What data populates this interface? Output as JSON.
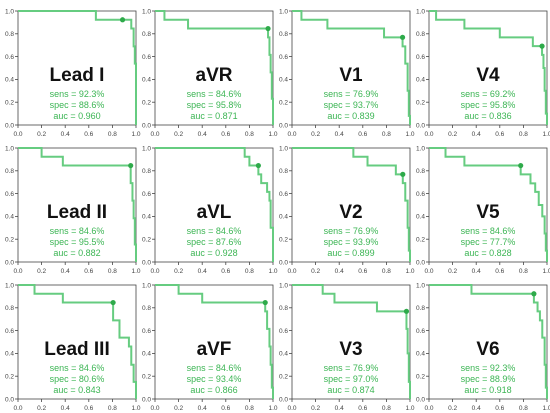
{
  "colors": {
    "curve": "#66cc80",
    "dot": "#2eaa4a",
    "stats": "#3cb554",
    "label": "#111111",
    "axis": "#444444",
    "grid_bg": "#ffffff"
  },
  "chart_data": [
    {
      "type": "line",
      "lead": "Lead I",
      "stats": [
        "sens = 92.3%",
        "spec = 88.6%",
        "auc = 0.960"
      ],
      "operating_point": [
        0.886,
        0.923
      ],
      "curve": [
        [
          0,
          1
        ],
        [
          0.66,
          1
        ],
        [
          0.66,
          0.923
        ],
        [
          0.96,
          0.923
        ],
        [
          0.96,
          0.846
        ],
        [
          0.98,
          0.846
        ],
        [
          0.98,
          0.69
        ],
        [
          0.99,
          0.69
        ],
        [
          0.99,
          0.538
        ],
        [
          1,
          0.538
        ],
        [
          1,
          0
        ]
      ],
      "xlim": [
        0,
        1
      ],
      "ylim": [
        0,
        1
      ],
      "xticks": [
        "0.0",
        "0.2",
        "0.4",
        "0.6",
        "0.8",
        "1.0"
      ],
      "yticks": [
        "0.0",
        "0.2",
        "0.4",
        "0.6",
        "0.8",
        "1.0"
      ]
    },
    {
      "type": "line",
      "lead": "aVR",
      "stats": [
        "sens = 84.6%",
        "spec = 95.8%",
        "auc = 0.871"
      ],
      "operating_point": [
        0.958,
        0.846
      ],
      "curve": [
        [
          0,
          1
        ],
        [
          0.08,
          1
        ],
        [
          0.08,
          0.923
        ],
        [
          0.28,
          0.923
        ],
        [
          0.28,
          0.846
        ],
        [
          0.958,
          0.846
        ],
        [
          0.958,
          0.769
        ],
        [
          0.97,
          0.769
        ],
        [
          0.97,
          0.615
        ],
        [
          0.98,
          0.615
        ],
        [
          0.98,
          0.462
        ],
        [
          0.99,
          0.462
        ],
        [
          0.99,
          0.23
        ],
        [
          1,
          0.23
        ],
        [
          1,
          0
        ]
      ],
      "xlim": [
        0,
        1
      ],
      "ylim": [
        0,
        1
      ],
      "xticks": [
        "0.0",
        "0.2",
        "0.4",
        "0.6",
        "0.8",
        "1.0"
      ],
      "yticks": [
        "0.0",
        "0.2",
        "0.4",
        "0.6",
        "0.8",
        "1.0"
      ]
    },
    {
      "type": "line",
      "lead": "V1",
      "stats": [
        "sens = 76.9%",
        "spec = 93.7%",
        "auc = 0.839"
      ],
      "operating_point": [
        0.937,
        0.769
      ],
      "curve": [
        [
          0,
          1
        ],
        [
          0.08,
          1
        ],
        [
          0.08,
          0.923
        ],
        [
          0.3,
          0.923
        ],
        [
          0.3,
          0.846
        ],
        [
          0.78,
          0.846
        ],
        [
          0.78,
          0.769
        ],
        [
          0.937,
          0.769
        ],
        [
          0.937,
          0.69
        ],
        [
          0.96,
          0.69
        ],
        [
          0.96,
          0.538
        ],
        [
          0.98,
          0.538
        ],
        [
          0.98,
          0.3
        ],
        [
          0.99,
          0.3
        ],
        [
          0.99,
          0.08
        ],
        [
          1,
          0.08
        ],
        [
          1,
          0
        ]
      ],
      "xlim": [
        0,
        1
      ],
      "ylim": [
        0,
        1
      ],
      "xticks": [
        "0.0",
        "0.2",
        "0.4",
        "0.6",
        "0.8",
        "1.0"
      ],
      "yticks": [
        "0.0",
        "0.2",
        "0.4",
        "0.6",
        "0.8",
        "1.0"
      ]
    },
    {
      "type": "line",
      "lead": "V4",
      "stats": [
        "sens = 69.2%",
        "spec = 95.8%",
        "auc = 0.836"
      ],
      "operating_point": [
        0.958,
        0.692
      ],
      "curve": [
        [
          0,
          1
        ],
        [
          0.06,
          1
        ],
        [
          0.06,
          0.923
        ],
        [
          0.3,
          0.923
        ],
        [
          0.3,
          0.846
        ],
        [
          0.6,
          0.846
        ],
        [
          0.6,
          0.769
        ],
        [
          0.88,
          0.769
        ],
        [
          0.88,
          0.692
        ],
        [
          0.958,
          0.692
        ],
        [
          0.958,
          0.615
        ],
        [
          0.97,
          0.615
        ],
        [
          0.97,
          0.5
        ],
        [
          0.98,
          0.5
        ],
        [
          0.98,
          0.3
        ],
        [
          0.99,
          0.3
        ],
        [
          0.99,
          0.1
        ],
        [
          1,
          0.1
        ],
        [
          1,
          0
        ]
      ],
      "xlim": [
        0,
        1
      ],
      "ylim": [
        0,
        1
      ],
      "xticks": [
        "0.0",
        "0.2",
        "0.4",
        "0.6",
        "0.8",
        "1.0"
      ],
      "yticks": [
        "0.0",
        "0.2",
        "0.4",
        "0.6",
        "0.8",
        "1.0"
      ]
    },
    {
      "type": "line",
      "lead": "Lead II",
      "stats": [
        "sens = 84.6%",
        "spec = 95.5%",
        "auc = 0.882"
      ],
      "operating_point": [
        0.955,
        0.846
      ],
      "curve": [
        [
          0,
          1
        ],
        [
          0.2,
          1
        ],
        [
          0.2,
          0.923
        ],
        [
          0.38,
          0.923
        ],
        [
          0.38,
          0.846
        ],
        [
          0.955,
          0.846
        ],
        [
          0.955,
          0.692
        ],
        [
          0.97,
          0.692
        ],
        [
          0.97,
          0.538
        ],
        [
          0.98,
          0.538
        ],
        [
          0.98,
          0.384
        ],
        [
          0.99,
          0.384
        ],
        [
          0.99,
          0.154
        ],
        [
          1,
          0.154
        ],
        [
          1,
          0
        ]
      ],
      "xlim": [
        0,
        1
      ],
      "ylim": [
        0,
        1
      ],
      "xticks": [
        "0.0",
        "0.2",
        "0.4",
        "0.6",
        "0.8",
        "1.0"
      ],
      "yticks": [
        "0.0",
        "0.2",
        "0.4",
        "0.6",
        "0.8",
        "1.0"
      ]
    },
    {
      "type": "line",
      "lead": "aVL",
      "stats": [
        "sens = 84.6%",
        "spec = 87.6%",
        "auc = 0.928"
      ],
      "operating_point": [
        0.876,
        0.846
      ],
      "curve": [
        [
          0,
          1
        ],
        [
          0.76,
          1
        ],
        [
          0.76,
          0.923
        ],
        [
          0.8,
          0.923
        ],
        [
          0.8,
          0.846
        ],
        [
          0.876,
          0.846
        ],
        [
          0.876,
          0.769
        ],
        [
          0.9,
          0.769
        ],
        [
          0.9,
          0.692
        ],
        [
          0.95,
          0.692
        ],
        [
          0.95,
          0.615
        ],
        [
          0.97,
          0.615
        ],
        [
          0.97,
          0.538
        ],
        [
          0.98,
          0.538
        ],
        [
          0.98,
          0.3
        ],
        [
          1,
          0.3
        ],
        [
          1,
          0
        ]
      ],
      "xlim": [
        0,
        1
      ],
      "ylim": [
        0,
        1
      ],
      "xticks": [
        "0.0",
        "0.2",
        "0.4",
        "0.6",
        "0.8",
        "1.0"
      ],
      "yticks": [
        "0.0",
        "0.2",
        "0.4",
        "0.6",
        "0.8",
        "1.0"
      ]
    },
    {
      "type": "line",
      "lead": "V2",
      "stats": [
        "sens = 76.9%",
        "spec = 93.9%",
        "auc = 0.899"
      ],
      "operating_point": [
        0.939,
        0.769
      ],
      "curve": [
        [
          0,
          1
        ],
        [
          0.52,
          1
        ],
        [
          0.52,
          0.923
        ],
        [
          0.64,
          0.923
        ],
        [
          0.64,
          0.846
        ],
        [
          0.88,
          0.846
        ],
        [
          0.88,
          0.769
        ],
        [
          0.939,
          0.769
        ],
        [
          0.939,
          0.692
        ],
        [
          0.96,
          0.692
        ],
        [
          0.96,
          0.538
        ],
        [
          0.98,
          0.538
        ],
        [
          0.98,
          0.3
        ],
        [
          0.99,
          0.3
        ],
        [
          0.99,
          0.1
        ],
        [
          1,
          0.1
        ],
        [
          1,
          0
        ]
      ],
      "xlim": [
        0,
        1
      ],
      "ylim": [
        0,
        1
      ],
      "xticks": [
        "0.0",
        "0.2",
        "0.4",
        "0.6",
        "0.8",
        "1.0"
      ],
      "yticks": [
        "0.0",
        "0.2",
        "0.4",
        "0.6",
        "0.8",
        "1.0"
      ]
    },
    {
      "type": "line",
      "lead": "V5",
      "stats": [
        "sens = 84.6%",
        "spec = 77.7%",
        "auc = 0.828"
      ],
      "operating_point": [
        0.777,
        0.846
      ],
      "curve": [
        [
          0,
          1
        ],
        [
          0.14,
          1
        ],
        [
          0.14,
          0.923
        ],
        [
          0.3,
          0.923
        ],
        [
          0.3,
          0.846
        ],
        [
          0.777,
          0.846
        ],
        [
          0.777,
          0.769
        ],
        [
          0.86,
          0.769
        ],
        [
          0.86,
          0.69
        ],
        [
          0.9,
          0.69
        ],
        [
          0.9,
          0.615
        ],
        [
          0.93,
          0.615
        ],
        [
          0.93,
          0.5
        ],
        [
          0.96,
          0.5
        ],
        [
          0.96,
          0.4
        ],
        [
          0.98,
          0.4
        ],
        [
          0.98,
          0.25
        ],
        [
          0.99,
          0.25
        ],
        [
          0.99,
          0.1
        ],
        [
          1,
          0.1
        ],
        [
          1,
          0
        ]
      ],
      "xlim": [
        0,
        1
      ],
      "ylim": [
        0,
        1
      ],
      "xticks": [
        "0.0",
        "0.2",
        "0.4",
        "0.6",
        "0.8",
        "1.0"
      ],
      "yticks": [
        "0.0",
        "0.2",
        "0.4",
        "0.6",
        "0.8",
        "1.0"
      ]
    },
    {
      "type": "line",
      "lead": "Lead III",
      "stats": [
        "sens = 84.6%",
        "spec = 80.6%",
        "auc = 0.843"
      ],
      "operating_point": [
        0.806,
        0.846
      ],
      "curve": [
        [
          0,
          1
        ],
        [
          0.14,
          1
        ],
        [
          0.14,
          0.923
        ],
        [
          0.38,
          0.923
        ],
        [
          0.38,
          0.846
        ],
        [
          0.806,
          0.846
        ],
        [
          0.806,
          0.69
        ],
        [
          0.86,
          0.69
        ],
        [
          0.86,
          0.538
        ],
        [
          0.94,
          0.538
        ],
        [
          0.94,
          0.46
        ],
        [
          0.96,
          0.46
        ],
        [
          0.96,
          0.3
        ],
        [
          0.98,
          0.3
        ],
        [
          0.98,
          0.15
        ],
        [
          1,
          0.15
        ],
        [
          1,
          0
        ]
      ],
      "xlim": [
        0,
        1
      ],
      "ylim": [
        0,
        1
      ],
      "xticks": [
        "0.0",
        "0.2",
        "0.4",
        "0.6",
        "0.8",
        "1.0"
      ],
      "yticks": [
        "0.0",
        "0.2",
        "0.4",
        "0.6",
        "0.8",
        "1.0"
      ]
    },
    {
      "type": "line",
      "lead": "aVF",
      "stats": [
        "sens = 84.6%",
        "spec = 93.4%",
        "auc = 0.866"
      ],
      "operating_point": [
        0.934,
        0.846
      ],
      "curve": [
        [
          0,
          1
        ],
        [
          0.2,
          1
        ],
        [
          0.2,
          0.923
        ],
        [
          0.4,
          0.923
        ],
        [
          0.4,
          0.846
        ],
        [
          0.934,
          0.846
        ],
        [
          0.934,
          0.769
        ],
        [
          0.95,
          0.769
        ],
        [
          0.95,
          0.615
        ],
        [
          0.97,
          0.615
        ],
        [
          0.97,
          0.46
        ],
        [
          0.98,
          0.46
        ],
        [
          0.98,
          0.3
        ],
        [
          0.99,
          0.3
        ],
        [
          0.99,
          0.1
        ],
        [
          1,
          0.1
        ],
        [
          1,
          0
        ]
      ],
      "xlim": [
        0,
        1
      ],
      "ylim": [
        0,
        1
      ],
      "xticks": [
        "0.0",
        "0.2",
        "0.4",
        "0.6",
        "0.8",
        "1.0"
      ],
      "yticks": [
        "0.0",
        "0.2",
        "0.4",
        "0.6",
        "0.8",
        "1.0"
      ]
    },
    {
      "type": "line",
      "lead": "V3",
      "stats": [
        "sens = 76.9%",
        "spec = 97.0%",
        "auc = 0.874"
      ],
      "operating_point": [
        0.97,
        0.769
      ],
      "curve": [
        [
          0,
          1
        ],
        [
          0.26,
          1
        ],
        [
          0.26,
          0.923
        ],
        [
          0.36,
          0.923
        ],
        [
          0.36,
          0.846
        ],
        [
          0.72,
          0.846
        ],
        [
          0.72,
          0.769
        ],
        [
          0.97,
          0.769
        ],
        [
          0.97,
          0.615
        ],
        [
          0.98,
          0.615
        ],
        [
          0.98,
          0.4
        ],
        [
          0.99,
          0.4
        ],
        [
          0.99,
          0.15
        ],
        [
          1,
          0.15
        ],
        [
          1,
          0
        ]
      ],
      "xlim": [
        0,
        1
      ],
      "ylim": [
        0,
        1
      ],
      "xticks": [
        "0.0",
        "0.2",
        "0.4",
        "0.6",
        "0.8",
        "1.0"
      ],
      "yticks": [
        "0.0",
        "0.2",
        "0.4",
        "0.6",
        "0.8",
        "1.0"
      ]
    },
    {
      "type": "line",
      "lead": "V6",
      "stats": [
        "sens = 92.3%",
        "spec = 88.9%",
        "auc = 0.918"
      ],
      "operating_point": [
        0.889,
        0.923
      ],
      "curve": [
        [
          0,
          1
        ],
        [
          0.36,
          1
        ],
        [
          0.36,
          0.923
        ],
        [
          0.889,
          0.923
        ],
        [
          0.889,
          0.846
        ],
        [
          0.92,
          0.846
        ],
        [
          0.92,
          0.769
        ],
        [
          0.94,
          0.769
        ],
        [
          0.94,
          0.69
        ],
        [
          0.96,
          0.69
        ],
        [
          0.96,
          0.538
        ],
        [
          0.98,
          0.538
        ],
        [
          0.98,
          0.3
        ],
        [
          0.99,
          0.3
        ],
        [
          0.99,
          0.1
        ],
        [
          1,
          0.1
        ],
        [
          1,
          0
        ]
      ],
      "xlim": [
        0,
        1
      ],
      "ylim": [
        0,
        1
      ],
      "xticks": [
        "0.0",
        "0.2",
        "0.4",
        "0.6",
        "0.8",
        "1.0"
      ],
      "yticks": [
        "0.0",
        "0.2",
        "0.4",
        "0.6",
        "0.8",
        "1.0"
      ]
    }
  ]
}
